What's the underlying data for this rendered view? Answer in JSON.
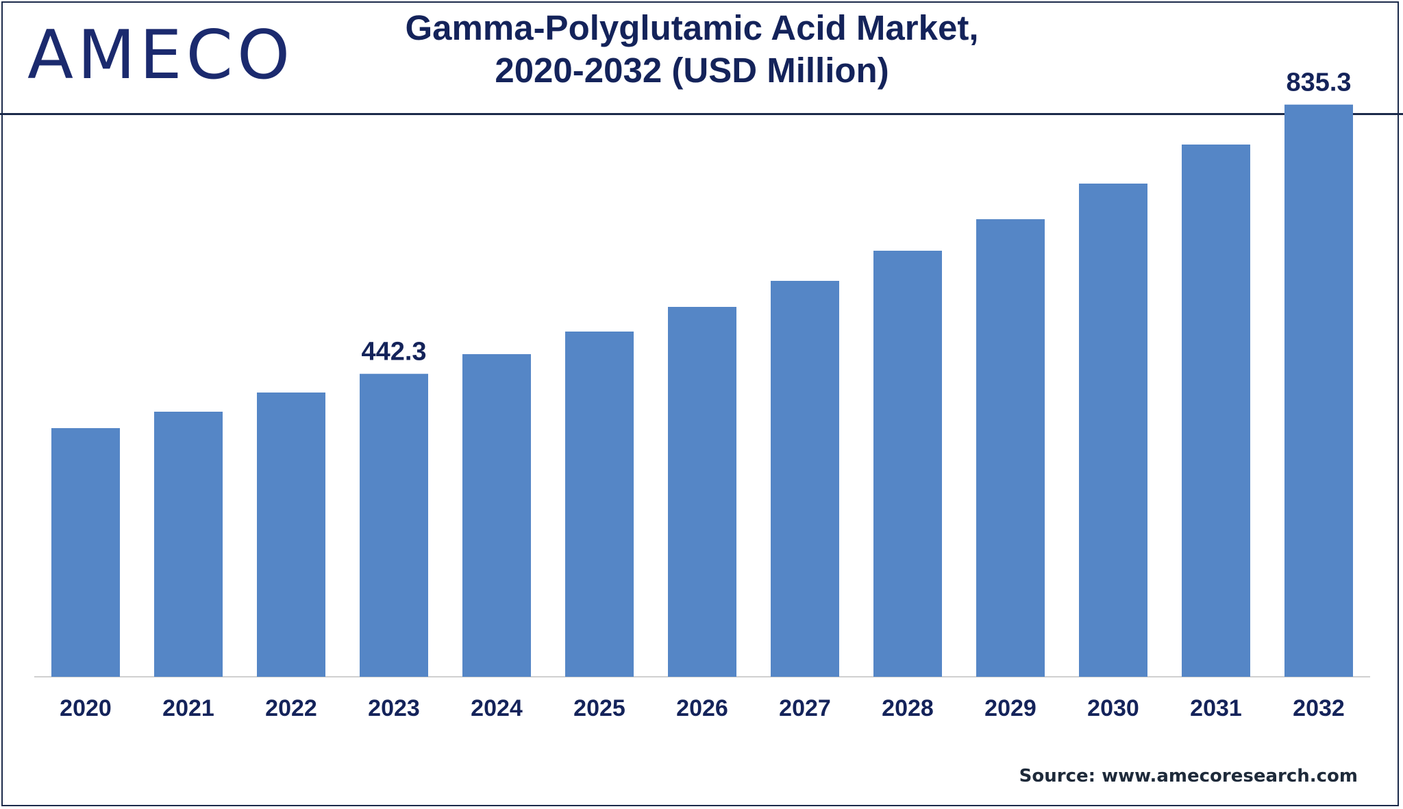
{
  "logo": {
    "text": "AMECO",
    "color": "#1b2a6e"
  },
  "title": {
    "line1": "Gamma-Polyglutamic Acid Market,",
    "line2": "2020-2032 (USD Million)"
  },
  "chart_data": {
    "type": "bar",
    "categories": [
      "2020",
      "2021",
      "2022",
      "2023",
      "2024",
      "2025",
      "2026",
      "2027",
      "2028",
      "2029",
      "2030",
      "2031",
      "2032"
    ],
    "values": [
      363,
      387,
      415,
      442.3,
      471,
      504,
      540,
      578,
      622,
      668,
      720,
      777,
      835.3
    ],
    "labeled_values": {
      "2023": "442.3",
      "2032": "835.3"
    },
    "ylim": [
      0,
      880
    ],
    "bar_color": "#5586c6",
    "label_color": "#14235a",
    "grid": false,
    "legend": "none"
  },
  "source": "Source: www.amecoresearch.com"
}
